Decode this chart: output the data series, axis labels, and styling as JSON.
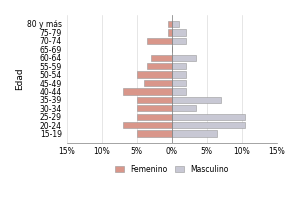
{
  "age_groups": [
    "15-19",
    "20-24",
    "25-29",
    "30-34",
    "35-39",
    "40-44",
    "45-49",
    "50-54",
    "55-59",
    "60-64",
    "65-69",
    "70-74",
    "75-79",
    "80 y más"
  ],
  "femenino": [
    5.0,
    7.0,
    5.0,
    5.0,
    5.0,
    7.0,
    4.0,
    5.0,
    3.5,
    3.0,
    0.0,
    3.5,
    0.5,
    0.5
  ],
  "masculino": [
    6.5,
    10.5,
    10.5,
    3.5,
    7.0,
    2.0,
    2.0,
    2.0,
    2.0,
    3.5,
    0.0,
    2.0,
    2.0,
    1.0
  ],
  "fem_color": "#d9968a",
  "masc_color": "#c8c8d4",
  "xlim": 15,
  "xticks": [
    -15,
    -10,
    -5,
    0,
    5,
    10,
    15
  ],
  "xticklabels": [
    "15%",
    "10%",
    "5%",
    "0%",
    "5%",
    "10%",
    "15%"
  ],
  "ylabel": "Edad",
  "legend_fem": "Femenino",
  "legend_masc": "Masculino",
  "background_color": "#ffffff",
  "bar_edge_color": "#999999",
  "bar_linewidth": 0.4
}
